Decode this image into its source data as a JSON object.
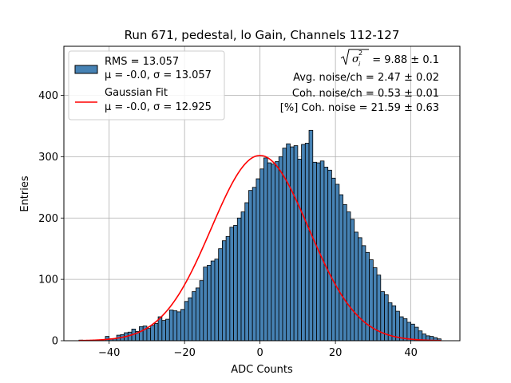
{
  "chart_data": {
    "type": "bar",
    "title": "Run 671, pedestal, lo Gain, Channels 112-127",
    "xlabel": "ADC Counts",
    "ylabel": "Entries",
    "xlim": [
      -52,
      53
    ],
    "ylim": [
      0,
      480
    ],
    "grid": true,
    "x_ticks": [
      -40,
      -20,
      0,
      20,
      40
    ],
    "x_tick_labels": [
      "−40",
      "−20",
      "0",
      "20",
      "40"
    ],
    "y_ticks": [
      0,
      100,
      200,
      300,
      400
    ],
    "y_tick_labels": [
      "0",
      "100",
      "200",
      "300",
      "400"
    ],
    "histogram": {
      "name": "RMS = 13.057",
      "color": "#4682b4",
      "bin_width": 1,
      "first_bin_left": -48,
      "counts": [
        1,
        0,
        0,
        0,
        0,
        1,
        0,
        7,
        3,
        3,
        9,
        10,
        13,
        14,
        19,
        15,
        23,
        24,
        20,
        25,
        28,
        39,
        33,
        35,
        50,
        49,
        47,
        51,
        64,
        70,
        80,
        86,
        98,
        120,
        123,
        130,
        133,
        150,
        163,
        170,
        185,
        188,
        200,
        210,
        225,
        245,
        250,
        264,
        280,
        298,
        290,
        288,
        292,
        300,
        314,
        321,
        316,
        318,
        296,
        320,
        322,
        343,
        291,
        290,
        293,
        283,
        278,
        265,
        255,
        238,
        222,
        210,
        198,
        177,
        168,
        155,
        144,
        132,
        119,
        107,
        80,
        75,
        62,
        57,
        48,
        39,
        36,
        30,
        27,
        22,
        16,
        11,
        8,
        7,
        5,
        3
      ]
    },
    "fit": {
      "name": "Gaussian Fit",
      "color": "#ff0000",
      "mu": 0,
      "sigma": 12.925,
      "amplitude": 302,
      "x_range": [
        -48,
        48
      ]
    },
    "legend": {
      "placement": "top-left",
      "entries": [
        {
          "kind": "patch",
          "line1": "RMS = 13.057",
          "line2": "μ = -0.0, σ = 13.057"
        },
        {
          "kind": "line",
          "line1": "Gaussian Fit",
          "line2": "μ = -0.0, σ = 12.925"
        }
      ]
    },
    "annotations": {
      "sigma_suffix": " = 9.88 ± 0.1",
      "avg_noise": "Avg. noise/ch = 2.47 ± 0.02",
      "coh_noise": "Coh. noise/ch = 0.53 ± 0.01",
      "pct_coh_noise": "[%] Coh. noise = 21.59 ± 0.63"
    }
  }
}
